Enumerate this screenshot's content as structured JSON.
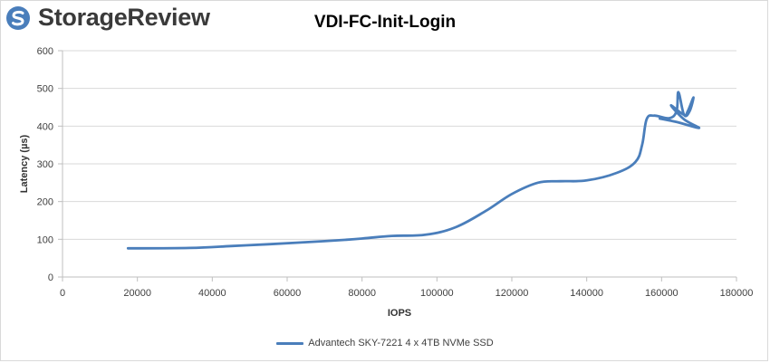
{
  "brand": {
    "name": "StorageReview",
    "logo_color": "#4a7ebb"
  },
  "chart_data": {
    "type": "line",
    "title": "VDI-FC-Init-Login",
    "xlabel": "IOPS",
    "ylabel": "Latency (µs)",
    "xlim": [
      0,
      180000
    ],
    "ylim": [
      0,
      600
    ],
    "x_ticks": [
      "0",
      "20000",
      "40000",
      "60000",
      "80000",
      "100000",
      "120000",
      "140000",
      "160000",
      "180000"
    ],
    "y_ticks": [
      "0",
      "100",
      "200",
      "300",
      "400",
      "500",
      "600"
    ],
    "grid": "horizontal",
    "legend_position": "bottom",
    "series": [
      {
        "name": "Advantech SKY-7221 4 x 4TB NVMe SSD",
        "color": "#4a7ebb",
        "points": [
          [
            17500,
            76
          ],
          [
            34000,
            77
          ],
          [
            45000,
            82
          ],
          [
            55000,
            87
          ],
          [
            70000,
            95
          ],
          [
            80000,
            102
          ],
          [
            88000,
            109
          ],
          [
            97000,
            112
          ],
          [
            105000,
            132
          ],
          [
            113000,
            175
          ],
          [
            120000,
            220
          ],
          [
            127000,
            250
          ],
          [
            133000,
            254
          ],
          [
            140000,
            256
          ],
          [
            148000,
            276
          ],
          [
            153000,
            305
          ],
          [
            154800,
            350
          ],
          [
            156000,
            418
          ],
          [
            158000,
            428
          ],
          [
            162000,
            421
          ],
          [
            164000,
            440
          ],
          [
            164500,
            490
          ],
          [
            166000,
            430
          ],
          [
            167500,
            440
          ],
          [
            168500,
            476
          ],
          [
            167000,
            440
          ],
          [
            166000,
            430
          ],
          [
            162500,
            455
          ],
          [
            166000,
            418
          ],
          [
            170000,
            395
          ],
          [
            164000,
            411
          ],
          [
            159500,
            420
          ]
        ]
      }
    ]
  }
}
